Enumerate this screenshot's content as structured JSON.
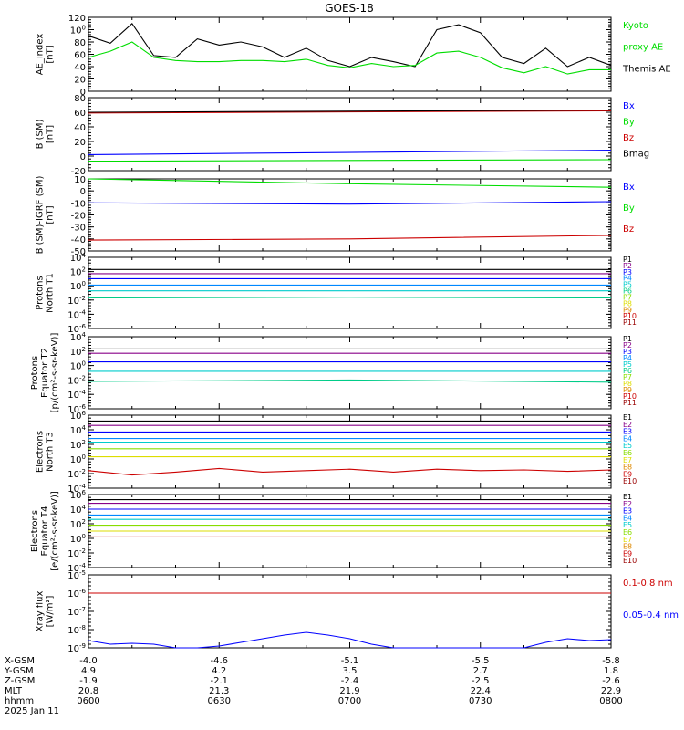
{
  "title": "GOES-18",
  "colors": {
    "black": "#000000",
    "green": "#00dd00",
    "blue": "#0000ff",
    "red": "#cc0000",
    "darkred": "#990000",
    "cyan": "#00cccc",
    "yellow": "#dddd00",
    "purple": "#880088",
    "navy": "#000088"
  },
  "chart_data": [
    {
      "type": "line",
      "ylabel": [
        "AE_index",
        "[nT]"
      ],
      "ylim": [
        0,
        120
      ],
      "yticks": [
        "0",
        "20",
        "40",
        "60",
        "80",
        "100",
        "120"
      ],
      "legend": [
        {
          "label": "Kyoto",
          "color": "#00dd00"
        },
        {
          "label": "proxy AE",
          "color": "#00dd00"
        },
        {
          "label": "Themis AE",
          "color": "#000000"
        }
      ],
      "series": [
        {
          "name": "Themis AE",
          "color": "#000000",
          "x": [
            0,
            5,
            10,
            15,
            20,
            25,
            30,
            35,
            40,
            45,
            50,
            55,
            60,
            65,
            70,
            75,
            80,
            85,
            90,
            95,
            100,
            105,
            110,
            115,
            120
          ],
          "y": [
            90,
            78,
            110,
            58,
            55,
            85,
            75,
            80,
            72,
            55,
            70,
            50,
            40,
            55,
            48,
            40,
            100,
            108,
            95,
            55,
            45,
            70,
            40,
            55,
            42
          ]
        },
        {
          "name": "Kyoto proxy AE",
          "color": "#00dd00",
          "x": [
            0,
            5,
            10,
            15,
            20,
            25,
            30,
            35,
            40,
            45,
            50,
            55,
            60,
            65,
            70,
            75,
            80,
            85,
            90,
            95,
            100,
            105,
            110,
            115,
            120
          ],
          "y": [
            55,
            65,
            80,
            55,
            50,
            48,
            48,
            50,
            50,
            48,
            52,
            42,
            38,
            45,
            40,
            42,
            62,
            65,
            55,
            38,
            30,
            40,
            28,
            35,
            35
          ]
        }
      ]
    },
    {
      "type": "line",
      "ylabel": [
        "B (SM)",
        "[nT]"
      ],
      "ylim": [
        -20,
        80
      ],
      "yticks": [
        "-20",
        "0",
        "20",
        "40",
        "60",
        "80"
      ],
      "legend": [
        {
          "label": "Bx",
          "color": "#0000ff"
        },
        {
          "label": "By",
          "color": "#00dd00"
        },
        {
          "label": "Bz",
          "color": "#cc0000"
        },
        {
          "label": "Bmag",
          "color": "#000000"
        }
      ],
      "series": [
        {
          "name": "Bx",
          "color": "#0000ff",
          "x": [
            0,
            120
          ],
          "y": [
            2,
            8
          ]
        },
        {
          "name": "By",
          "color": "#00dd00",
          "x": [
            0,
            120
          ],
          "y": [
            -7,
            -5
          ]
        },
        {
          "name": "Bz",
          "color": "#cc0000",
          "x": [
            0,
            120
          ],
          "y": [
            59,
            62
          ]
        },
        {
          "name": "Bmag",
          "color": "#000000",
          "x": [
            0,
            120
          ],
          "y": [
            60,
            63
          ]
        }
      ]
    },
    {
      "type": "line",
      "ylabel": [
        "B (SM)-IGRF (SM)",
        "[nT]"
      ],
      "ylim": [
        -50,
        10
      ],
      "yticks": [
        "-50",
        "-40",
        "-30",
        "-20",
        "-10",
        "0",
        "10"
      ],
      "legend": [
        {
          "label": "Bx",
          "color": "#0000ff"
        },
        {
          "label": "By",
          "color": "#00dd00"
        },
        {
          "label": "Bz",
          "color": "#cc0000"
        }
      ],
      "series": [
        {
          "name": "Bx",
          "color": "#0000ff",
          "x": [
            0,
            60,
            120
          ],
          "y": [
            -10,
            -11,
            -9
          ]
        },
        {
          "name": "By",
          "color": "#00dd00",
          "x": [
            0,
            60,
            120
          ],
          "y": [
            10,
            6,
            3
          ]
        },
        {
          "name": "Bz",
          "color": "#cc0000",
          "x": [
            0,
            60,
            120
          ],
          "y": [
            -41,
            -40,
            -37
          ]
        }
      ]
    },
    {
      "type": "line",
      "ylabel": [
        "Protons",
        "North T1"
      ],
      "ylog": [
        -6,
        4
      ],
      "yticks": [
        "10-6",
        "10-4",
        "10-2",
        "100",
        "102",
        "104"
      ],
      "legend": [
        {
          "label": "P1",
          "color": "#000000"
        },
        {
          "label": "P2",
          "color": "#880088"
        },
        {
          "label": "P3",
          "color": "#0000ff"
        },
        {
          "label": "P4",
          "color": "#0088ff"
        },
        {
          "label": "P5",
          "color": "#00cccc"
        },
        {
          "label": "P6",
          "color": "#00cc88"
        },
        {
          "label": "P7",
          "color": "#88dd00"
        },
        {
          "label": "P8",
          "color": "#dddd00"
        },
        {
          "label": "P9",
          "color": "#dd8800"
        },
        {
          "label": "P10",
          "color": "#cc0000"
        },
        {
          "label": "P11",
          "color": "#990000"
        }
      ],
      "series": [
        {
          "name": "P1",
          "color": "#000000",
          "x": [
            0,
            120
          ],
          "y": [
            2.3,
            2.3
          ]
        },
        {
          "name": "P2",
          "color": "#880088",
          "x": [
            0,
            120
          ],
          "y": [
            1.7,
            1.7
          ]
        },
        {
          "name": "P3",
          "color": "#0000ff",
          "x": [
            0,
            120
          ],
          "y": [
            1.0,
            1.0
          ]
        },
        {
          "name": "P4",
          "color": "#0088ff",
          "x": [
            0,
            120
          ],
          "y": [
            0.1,
            0.1
          ]
        },
        {
          "name": "P5",
          "color": "#00cccc",
          "x": [
            0,
            120
          ],
          "y": [
            -0.7,
            -0.7
          ]
        },
        {
          "name": "P6",
          "color": "#00cc88",
          "x": [
            0,
            60,
            120
          ],
          "y": [
            -1.7,
            -1.6,
            -1.7
          ]
        }
      ]
    },
    {
      "type": "line",
      "ylabel": [
        "Protons",
        "Equator T2",
        "[p/(cm²-s-sr-keV)]"
      ],
      "ylog": [
        -6,
        4
      ],
      "yticks": [
        "10-6",
        "10-4",
        "10-2",
        "100",
        "102",
        "104"
      ],
      "legend": [
        {
          "label": "P1",
          "color": "#000000"
        },
        {
          "label": "P2",
          "color": "#880088"
        },
        {
          "label": "P3",
          "color": "#0000ff"
        },
        {
          "label": "P4",
          "color": "#0088ff"
        },
        {
          "label": "P5",
          "color": "#00cccc"
        },
        {
          "label": "P6",
          "color": "#00cc88"
        },
        {
          "label": "P7",
          "color": "#88dd00"
        },
        {
          "label": "P8",
          "color": "#dddd00"
        },
        {
          "label": "P9",
          "color": "#dd8800"
        },
        {
          "label": "P10",
          "color": "#cc0000"
        },
        {
          "label": "P11",
          "color": "#990000"
        }
      ],
      "series": [
        {
          "name": "P1",
          "color": "#000000",
          "x": [
            0,
            120
          ],
          "y": [
            2.3,
            2.3
          ]
        },
        {
          "name": "P2",
          "color": "#880088",
          "x": [
            0,
            120
          ],
          "y": [
            1.7,
            1.7
          ]
        },
        {
          "name": "P3",
          "color": "#0000ff",
          "x": [
            0,
            120
          ],
          "y": [
            0.5,
            0.5
          ]
        },
        {
          "name": "P4",
          "color": "#00cccc",
          "x": [
            0,
            120
          ],
          "y": [
            -0.8,
            -0.8
          ]
        },
        {
          "name": "P6",
          "color": "#00cc88",
          "x": [
            0,
            60,
            120
          ],
          "y": [
            -2.2,
            -2.0,
            -2.3
          ]
        }
      ]
    },
    {
      "type": "line",
      "ylabel": [
        "Electrons",
        "North T3"
      ],
      "ylog": [
        -4,
        6
      ],
      "yticks": [
        "10-4",
        "10-2",
        "100",
        "102",
        "104",
        "106"
      ],
      "legend": [
        {
          "label": "E1",
          "color": "#000000"
        },
        {
          "label": "E2",
          "color": "#880088"
        },
        {
          "label": "E3",
          "color": "#0000ff"
        },
        {
          "label": "E4",
          "color": "#0088ff"
        },
        {
          "label": "E5",
          "color": "#00cccc"
        },
        {
          "label": "E6",
          "color": "#88dd00"
        },
        {
          "label": "E7",
          "color": "#dddd00"
        },
        {
          "label": "E8",
          "color": "#dd8800"
        },
        {
          "label": "E9",
          "color": "#cc0000"
        },
        {
          "label": "E10",
          "color": "#990000"
        }
      ],
      "series": [
        {
          "name": "E1",
          "color": "#000000",
          "x": [
            0,
            120
          ],
          "y": [
            5.2,
            5.2
          ]
        },
        {
          "name": "E2",
          "color": "#880088",
          "x": [
            0,
            120
          ],
          "y": [
            4.6,
            4.6
          ]
        },
        {
          "name": "E3",
          "color": "#0000ff",
          "x": [
            0,
            120
          ],
          "y": [
            3.7,
            3.7
          ]
        },
        {
          "name": "E4",
          "color": "#0088ff",
          "x": [
            0,
            120
          ],
          "y": [
            2.8,
            2.8
          ]
        },
        {
          "name": "E5",
          "color": "#00cccc",
          "x": [
            0,
            120
          ],
          "y": [
            2.3,
            2.3
          ]
        },
        {
          "name": "E6",
          "color": "#88dd00",
          "x": [
            0,
            120
          ],
          "y": [
            1.4,
            1.4
          ]
        },
        {
          "name": "E7",
          "color": "#dddd00",
          "x": [
            0,
            120
          ],
          "y": [
            0.3,
            0.3
          ]
        },
        {
          "name": "E8",
          "color": "#cc0000",
          "x": [
            0,
            10,
            20,
            30,
            40,
            50,
            60,
            70,
            80,
            90,
            100,
            110,
            120
          ],
          "y": [
            -1.6,
            -2.2,
            -1.8,
            -1.3,
            -1.8,
            -1.6,
            -1.4,
            -1.8,
            -1.4,
            -1.6,
            -1.5,
            -1.7,
            -1.5
          ]
        }
      ]
    },
    {
      "type": "line",
      "ylabel": [
        "Electrons",
        "Equator T4",
        "[e/(cm²-s-sr-keV)]"
      ],
      "ylog": [
        -4,
        6
      ],
      "yticks": [
        "10-4",
        "10-2",
        "100",
        "102",
        "104",
        "106"
      ],
      "legend": [
        {
          "label": "E1",
          "color": "#000000"
        },
        {
          "label": "E2",
          "color": "#880088"
        },
        {
          "label": "E3",
          "color": "#0000ff"
        },
        {
          "label": "E4",
          "color": "#0088ff"
        },
        {
          "label": "E5",
          "color": "#00cccc"
        },
        {
          "label": "E6",
          "color": "#88dd00"
        },
        {
          "label": "E7",
          "color": "#dddd00"
        },
        {
          "label": "E8",
          "color": "#dd8800"
        },
        {
          "label": "E9",
          "color": "#cc0000"
        },
        {
          "label": "E10",
          "color": "#990000"
        }
      ],
      "series": [
        {
          "name": "E1",
          "color": "#000000",
          "x": [
            0,
            120
          ],
          "y": [
            5.3,
            5.3
          ]
        },
        {
          "name": "E2",
          "color": "#880088",
          "x": [
            0,
            120
          ],
          "y": [
            4.8,
            4.8
          ]
        },
        {
          "name": "E3",
          "color": "#0000ff",
          "x": [
            0,
            120
          ],
          "y": [
            4.0,
            4.0
          ]
        },
        {
          "name": "E4",
          "color": "#0088ff",
          "x": [
            0,
            120
          ],
          "y": [
            3.2,
            3.2
          ]
        },
        {
          "name": "E5",
          "color": "#00cccc",
          "x": [
            0,
            120
          ],
          "y": [
            2.6,
            2.6
          ]
        },
        {
          "name": "E6",
          "color": "#88dd00",
          "x": [
            0,
            120
          ],
          "y": [
            1.8,
            1.8
          ]
        },
        {
          "name": "E7",
          "color": "#dddd00",
          "x": [
            0,
            120
          ],
          "y": [
            1.0,
            1.0
          ]
        },
        {
          "name": "E8",
          "color": "#cc0000",
          "x": [
            0,
            120
          ],
          "y": [
            0.2,
            0.2
          ]
        }
      ]
    },
    {
      "type": "line",
      "ylabel": [
        "Xray flux",
        "[W/m²]"
      ],
      "ylog": [
        -9,
        -5
      ],
      "yticks": [
        "10-9",
        "10-8",
        "10-7",
        "10-6",
        "10-5"
      ],
      "legend": [
        {
          "label": "0.1-0.8 nm",
          "color": "#cc0000"
        },
        {
          "label": "0.05-0.4 nm",
          "color": "#0000ff"
        }
      ],
      "series": [
        {
          "name": "0.1-0.8 nm",
          "color": "#cc0000",
          "x": [
            0,
            120
          ],
          "y": [
            -6.0,
            -6.0
          ]
        },
        {
          "name": "0.05-0.4 nm",
          "color": "#0000ff",
          "x": [
            0,
            5,
            10,
            15,
            20,
            25,
            30,
            35,
            40,
            45,
            50,
            55,
            60,
            65,
            70,
            75,
            80,
            85,
            90,
            95,
            100,
            105,
            110,
            115,
            120
          ],
          "y": [
            -8.6,
            -8.8,
            -8.75,
            -8.8,
            -9.0,
            -9.0,
            -8.9,
            -8.7,
            -8.5,
            -8.3,
            -8.15,
            -8.3,
            -8.5,
            -8.8,
            -9.0,
            -9.0,
            -9.0,
            -9.0,
            -9.0,
            -9.0,
            -9.0,
            -8.7,
            -8.5,
            -8.6,
            -8.55
          ]
        }
      ]
    }
  ],
  "x_axis": {
    "row_labels": [
      "X-GSM",
      "Y-GSM",
      "Z-GSM",
      "MLT",
      "hhmm",
      "2025 Jan 11"
    ],
    "ticks": [
      {
        "minute": 0,
        "values": [
          "-4.0",
          "4.9",
          "-1.9",
          "20.8",
          "0600"
        ]
      },
      {
        "minute": 30,
        "values": [
          "-4.6",
          "4.2",
          "-2.1",
          "21.3",
          "0630"
        ]
      },
      {
        "minute": 60,
        "values": [
          "-5.1",
          "3.5",
          "-2.4",
          "21.9",
          "0700"
        ]
      },
      {
        "minute": 90,
        "values": [
          "-5.5",
          "2.7",
          "-2.5",
          "22.4",
          "0730"
        ]
      },
      {
        "minute": 120,
        "values": [
          "-5.8",
          "1.8",
          "-2.6",
          "22.9",
          "0800"
        ]
      }
    ]
  }
}
